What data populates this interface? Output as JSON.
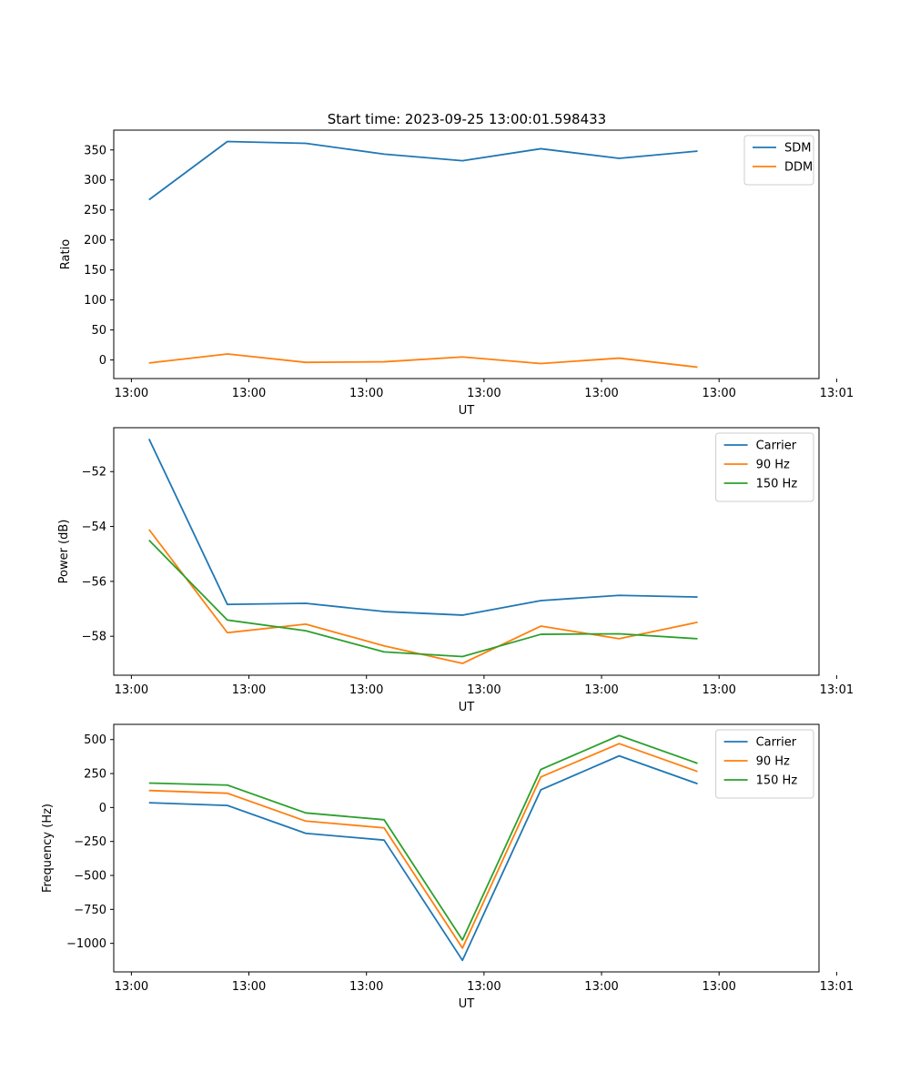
{
  "figure_title": "Start time: 2023-09-25 13:00:01.598433",
  "chart_data": [
    {
      "type": "line",
      "title": "Start time: 2023-09-25 13:00:01.598433",
      "xlabel": "UT",
      "ylabel": "Ratio",
      "x": [
        1,
        2,
        3,
        4,
        5,
        6,
        7,
        8
      ],
      "xlim": [
        0.55,
        9.55
      ],
      "xticks": [
        0.775,
        2.275,
        3.775,
        5.275,
        6.775,
        8.275,
        9.775
      ],
      "xtick_labels": [
        "13:00",
        "13:00",
        "13:00",
        "13:00",
        "13:00",
        "13:00",
        "13:01"
      ],
      "ylim": [
        -31,
        383
      ],
      "yticks": [
        0,
        50,
        100,
        150,
        200,
        250,
        300,
        350
      ],
      "ytick_labels": [
        "0",
        "50",
        "100",
        "150",
        "200",
        "250",
        "300",
        "350"
      ],
      "grid": false,
      "legend": "top-right",
      "series": [
        {
          "name": "SDM",
          "color": "#1f77b4",
          "values": [
            267,
            364,
            361,
            343,
            332,
            352,
            336,
            348
          ]
        },
        {
          "name": "DDM",
          "color": "#ff7f0e",
          "values": [
            -5,
            10,
            -4,
            -3,
            5,
            -6,
            3,
            -12
          ]
        }
      ]
    },
    {
      "type": "line",
      "title": "",
      "xlabel": "UT",
      "ylabel": "Power (dB)",
      "x": [
        1,
        2,
        3,
        4,
        5,
        6,
        7,
        8
      ],
      "xlim": [
        0.55,
        9.55
      ],
      "xticks": [
        0.775,
        2.275,
        3.775,
        5.275,
        6.775,
        8.275,
        9.775
      ],
      "xtick_labels": [
        "13:00",
        "13:00",
        "13:00",
        "13:00",
        "13:00",
        "13:00",
        "13:01"
      ],
      "ylim": [
        -59.42,
        -50.4
      ],
      "yticks": [
        -58,
        -56,
        -54,
        -52
      ],
      "ytick_labels": [
        "−58",
        "−56",
        "−54",
        "−52"
      ],
      "grid": false,
      "legend": "top-right",
      "series": [
        {
          "name": "Carrier",
          "color": "#1f77b4",
          "values": [
            -50.81,
            -56.84,
            -56.8,
            -57.1,
            -57.23,
            -56.7,
            -56.51,
            -56.57
          ]
        },
        {
          "name": "90 Hz",
          "color": "#ff7f0e",
          "values": [
            -54.11,
            -57.87,
            -57.56,
            -58.35,
            -58.99,
            -57.63,
            -58.09,
            -57.49
          ]
        },
        {
          "name": "150 Hz",
          "color": "#2ca02c",
          "values": [
            -54.5,
            -57.41,
            -57.8,
            -58.57,
            -58.74,
            -57.93,
            -57.91,
            -58.09
          ]
        }
      ]
    },
    {
      "type": "line",
      "title": "",
      "xlabel": "UT",
      "ylabel": "Frequency (Hz)",
      "x": [
        1,
        2,
        3,
        4,
        5,
        6,
        7,
        8
      ],
      "xlim": [
        0.55,
        9.55
      ],
      "xticks": [
        0.775,
        2.275,
        3.775,
        5.275,
        6.775,
        8.275,
        9.775
      ],
      "xtick_labels": [
        "13:00",
        "13:00",
        "13:00",
        "13:00",
        "13:00",
        "13:00",
        "13:01"
      ],
      "ylim": [
        -1210,
        612
      ],
      "yticks": [
        -1000,
        -750,
        -500,
        -250,
        0,
        250,
        500
      ],
      "ytick_labels": [
        "−1000",
        "−750",
        "−500",
        "−250",
        "0",
        "250",
        "500"
      ],
      "grid": false,
      "legend": "top-right",
      "series": [
        {
          "name": "Carrier",
          "color": "#1f77b4",
          "values": [
            35,
            15,
            -190,
            -240,
            -1125,
            130,
            380,
            175
          ]
        },
        {
          "name": "90 Hz",
          "color": "#ff7f0e",
          "values": [
            125,
            105,
            -100,
            -150,
            -1035,
            225,
            470,
            265
          ]
        },
        {
          "name": "150 Hz",
          "color": "#2ca02c",
          "values": [
            180,
            165,
            -40,
            -90,
            -975,
            280,
            530,
            325
          ]
        }
      ]
    }
  ]
}
